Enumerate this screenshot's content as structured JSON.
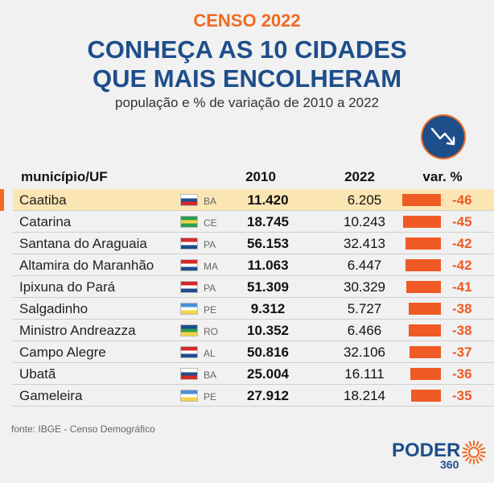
{
  "header": {
    "kicker": "CENSO 2022",
    "title_line1": "CONHEÇA AS 10 CIDADES",
    "title_line2": "QUE MAIS ENCOLHERAM",
    "subtitle": "população e % de variação de 2010 a 2022"
  },
  "columns": {
    "city": "município/UF",
    "year1": "2010",
    "year2": "2022",
    "variation": "var. %"
  },
  "chart_data": {
    "type": "table",
    "title": "CONHEÇA AS 10 CIDADES QUE MAIS ENCOLHERAM",
    "subtitle": "população e % de variação de 2010 a 2022",
    "rows": [
      {
        "city": "Caatiba",
        "uf": "BA",
        "y2010": "11.420",
        "y2022": "6.205",
        "var": -46
      },
      {
        "city": "Catarina",
        "uf": "CE",
        "y2010": "18.745",
        "y2022": "10.243",
        "var": -45
      },
      {
        "city": "Santana do Araguaia",
        "uf": "PA",
        "y2010": "56.153",
        "y2022": "32.413",
        "var": -42
      },
      {
        "city": "Altamira do Maranhão",
        "uf": "MA",
        "y2010": "11.063",
        "y2022": "6.447",
        "var": -42
      },
      {
        "city": "Ipixuna do Pará",
        "uf": "PA",
        "y2010": "51.309",
        "y2022": "30.329",
        "var": -41
      },
      {
        "city": "Salgadinho",
        "uf": "PE",
        "y2010": "9.312",
        "y2022": "5.727",
        "var": -38
      },
      {
        "city": "Ministro Andreazza",
        "uf": "RO",
        "y2010": "10.352",
        "y2022": "6.466",
        "var": -38
      },
      {
        "city": "Campo Alegre",
        "uf": "AL",
        "y2010": "50.816",
        "y2022": "32.106",
        "var": -37
      },
      {
        "city": "Ubatã",
        "uf": "BA",
        "y2010": "25.004",
        "y2022": "16.111",
        "var": -36
      },
      {
        "city": "Gameleira",
        "uf": "PE",
        "y2010": "27.912",
        "y2022": "18.214",
        "var": -35
      }
    ],
    "highlighted_row": 0
  },
  "colors": {
    "accent": "#f05a24",
    "brand_blue": "#1d4e8a",
    "highlight_row": "#fbe6b3"
  },
  "icons": {
    "trend": "downward-trend-arrow-icon",
    "logo": "poder360-sun-icon"
  },
  "footer": {
    "source": "fonte: IBGE - Censo Demográfico",
    "logo_word": "PODER",
    "logo_number": "360"
  }
}
